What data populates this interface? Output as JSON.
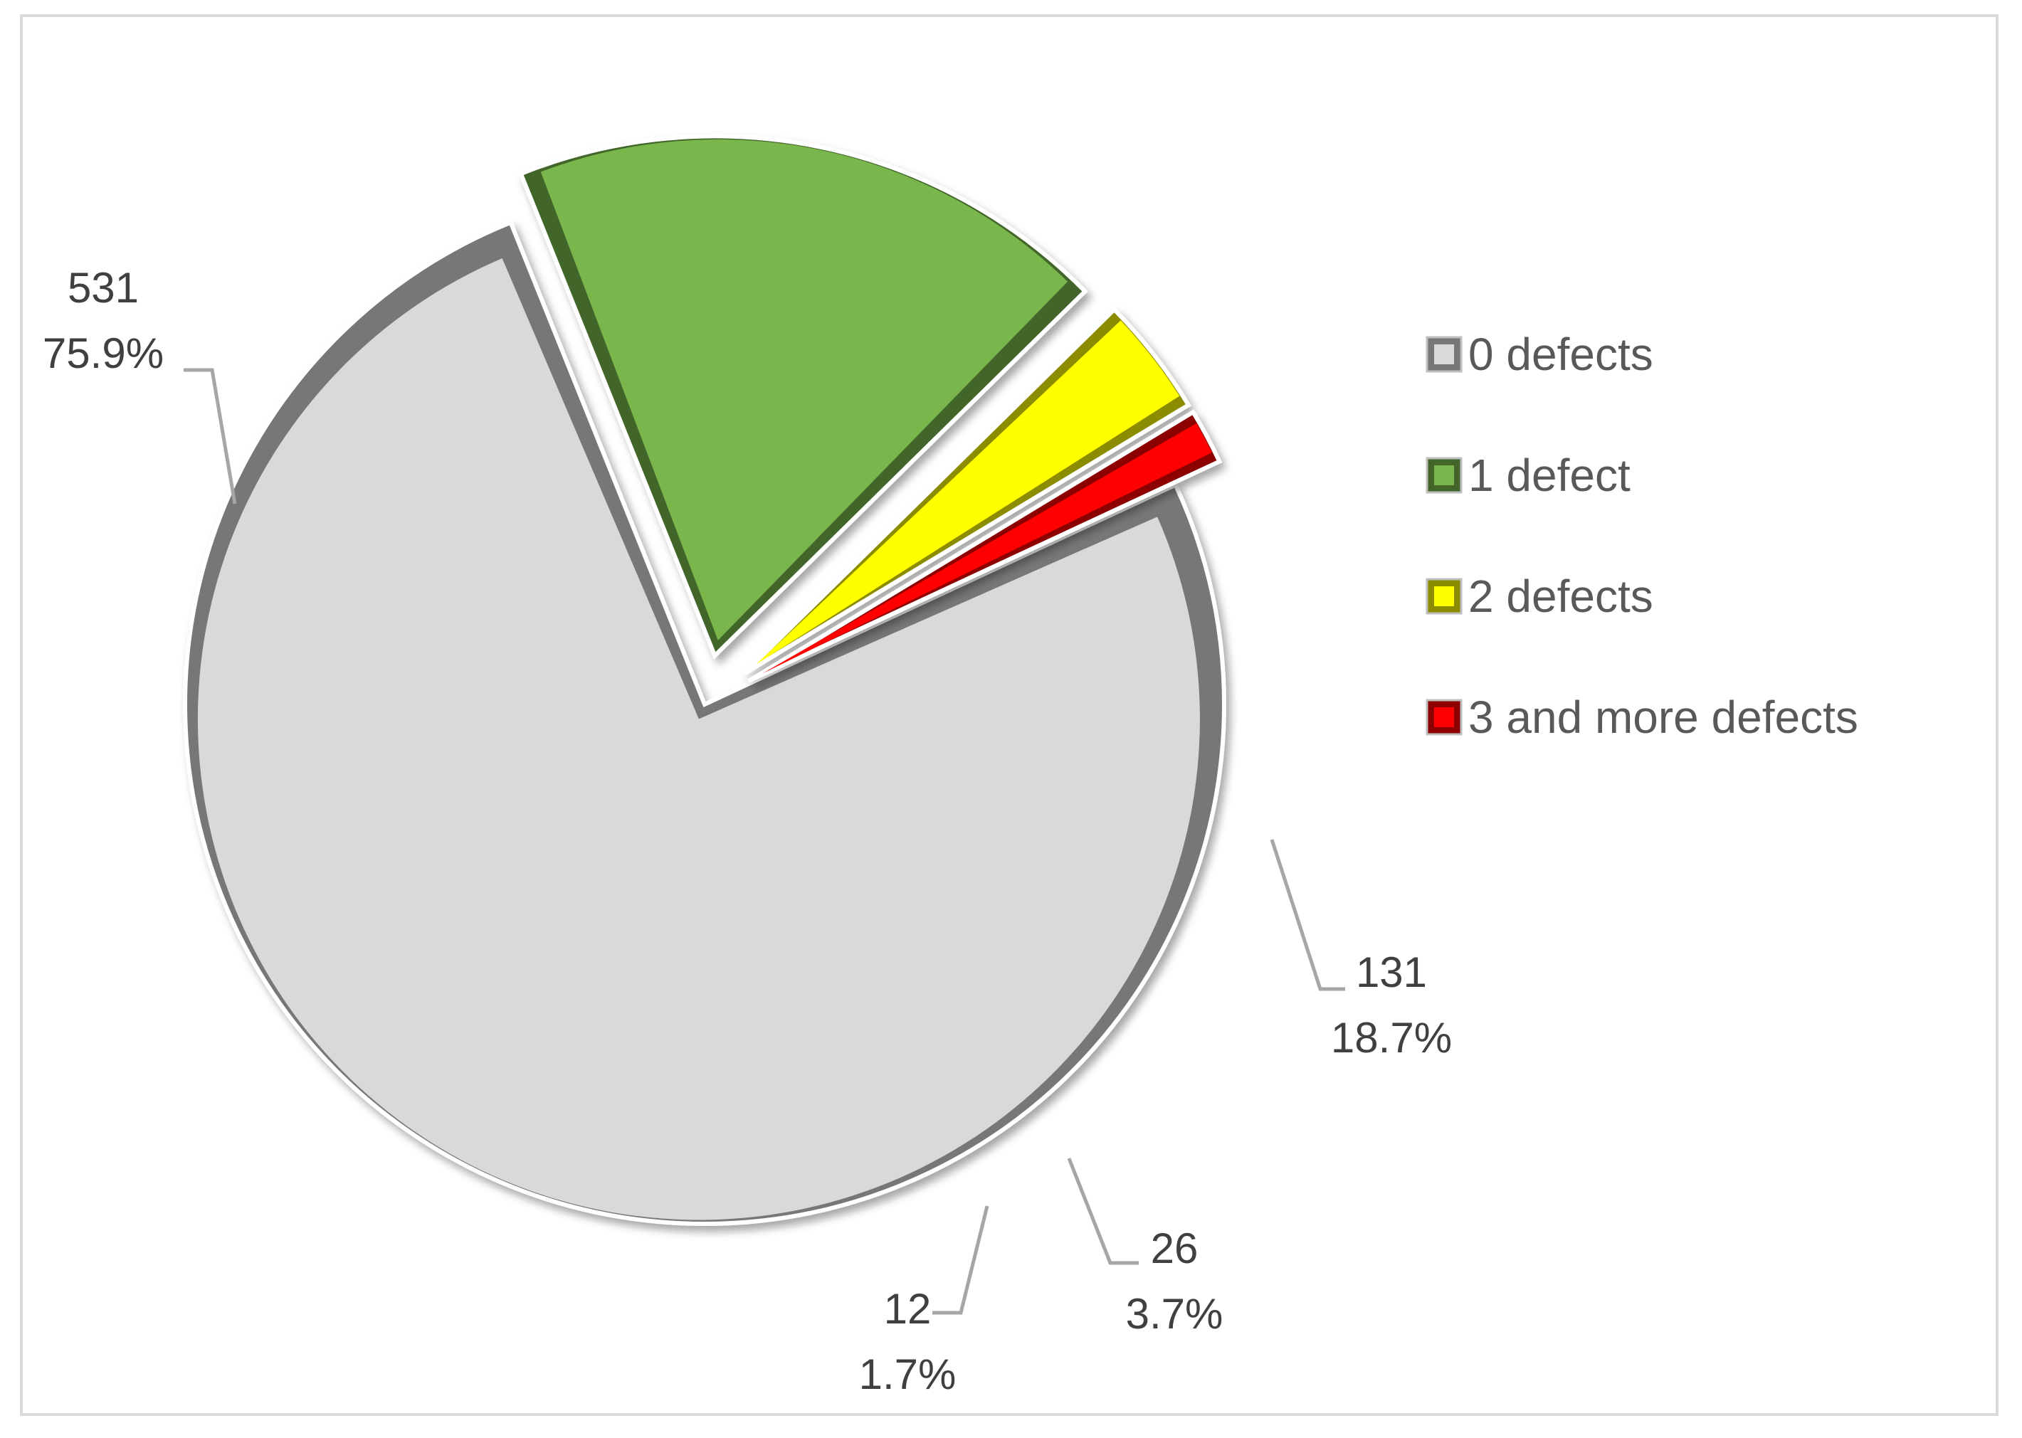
{
  "chart_data": {
    "type": "pie",
    "title": "",
    "categories": [
      "0 defects",
      "1 defect",
      "2 defects",
      "3 and more defects"
    ],
    "values": [
      531,
      131,
      26,
      12
    ],
    "percent_labels": [
      "75.9%",
      "18.7%",
      "3.7%",
      "1.7%"
    ],
    "value_labels": [
      "531",
      "131",
      "26",
      "12"
    ],
    "colors": [
      "#d9d8db",
      "#79b74d",
      "#ffff00",
      "#ff0000"
    ],
    "exploded": [
      false,
      true,
      true,
      true
    ],
    "start_angle_deg": -25,
    "direction": "clockwise",
    "legend_position": "right",
    "style": "3d-bevel"
  }
}
